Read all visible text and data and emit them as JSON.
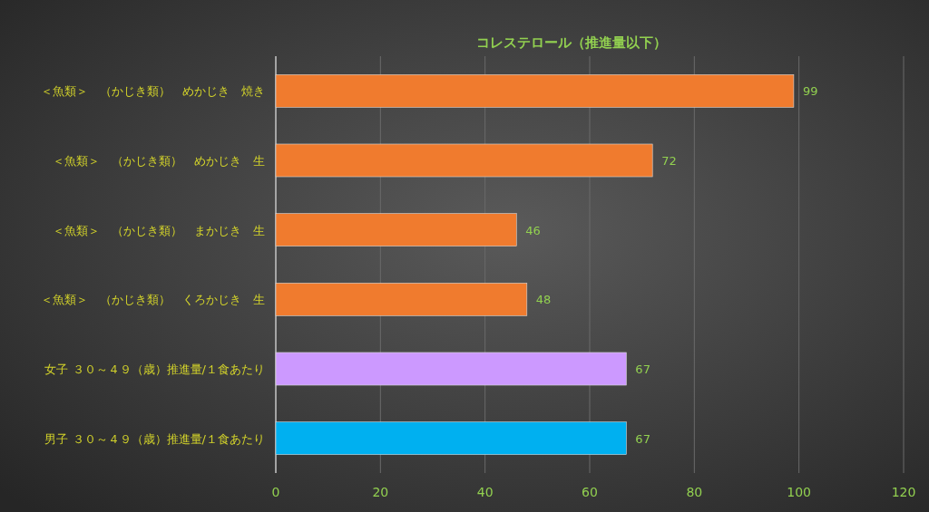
{
  "chart_data": {
    "type": "bar",
    "orientation": "horizontal",
    "title": "コレステロール（推進量以下）",
    "categories": [
      "＜魚類＞　（かじき類）　めかじき　焼き",
      "＜魚類＞　（かじき類）　めかじき　生",
      "＜魚類＞　（かじき類）　まかじき　生",
      "＜魚類＞　（かじき類）　くろかじき　生",
      "女子 ３０～４９（歳）推進量/１食あたり",
      "男子 ３０～４９（歳）推進量/１食あたり"
    ],
    "values": [
      99,
      72,
      46,
      48,
      67,
      67
    ],
    "colors": [
      "#f07b2e",
      "#f07b2e",
      "#f07b2e",
      "#f07b2e",
      "#cc99ff",
      "#00b0f0"
    ],
    "xlim": [
      0,
      120
    ],
    "xticks": [
      0,
      20,
      40,
      60,
      80,
      100,
      120
    ],
    "grid": "x",
    "data_labels": true
  }
}
